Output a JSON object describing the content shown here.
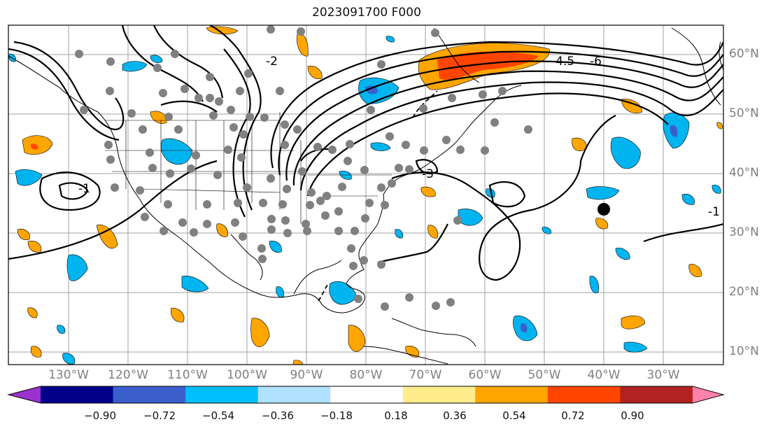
{
  "title": "2023091700 F000",
  "lat_labels": [
    "60°N",
    "50°N",
    "40°N",
    "30°N",
    "20°N",
    "10°N"
  ],
  "lon_labels": [
    "130°W",
    "120°W",
    "110°W",
    "100°W",
    "90°W",
    "80°W",
    "70°W",
    "60°W",
    "50°W",
    "40°W",
    "30°W"
  ],
  "contour_labels": [
    "-4.5",
    "-6",
    "-3",
    "-1",
    "-2",
    "-1"
  ],
  "colorbar": {
    "ticks": [
      "−0.90",
      "−0.72",
      "−0.54",
      "−0.36",
      "−0.18",
      "0.18",
      "0.36",
      "0.54",
      "0.72",
      "0.90"
    ],
    "colors": [
      "#9a32cd",
      "#00008b",
      "#3a5fcd",
      "#00bfff",
      "#b0e2ff",
      "#ffffff",
      "#ffec8b",
      "#ffa500",
      "#ff4500",
      "#b22222",
      "#ff82ab"
    ]
  },
  "colors": {
    "grid": "#a0a0a0",
    "coast": "#000000",
    "positive_fill": "#ffa500",
    "negative_fill": "#00b4f0",
    "station_dot": "#808080",
    "marker": "#000000"
  }
}
